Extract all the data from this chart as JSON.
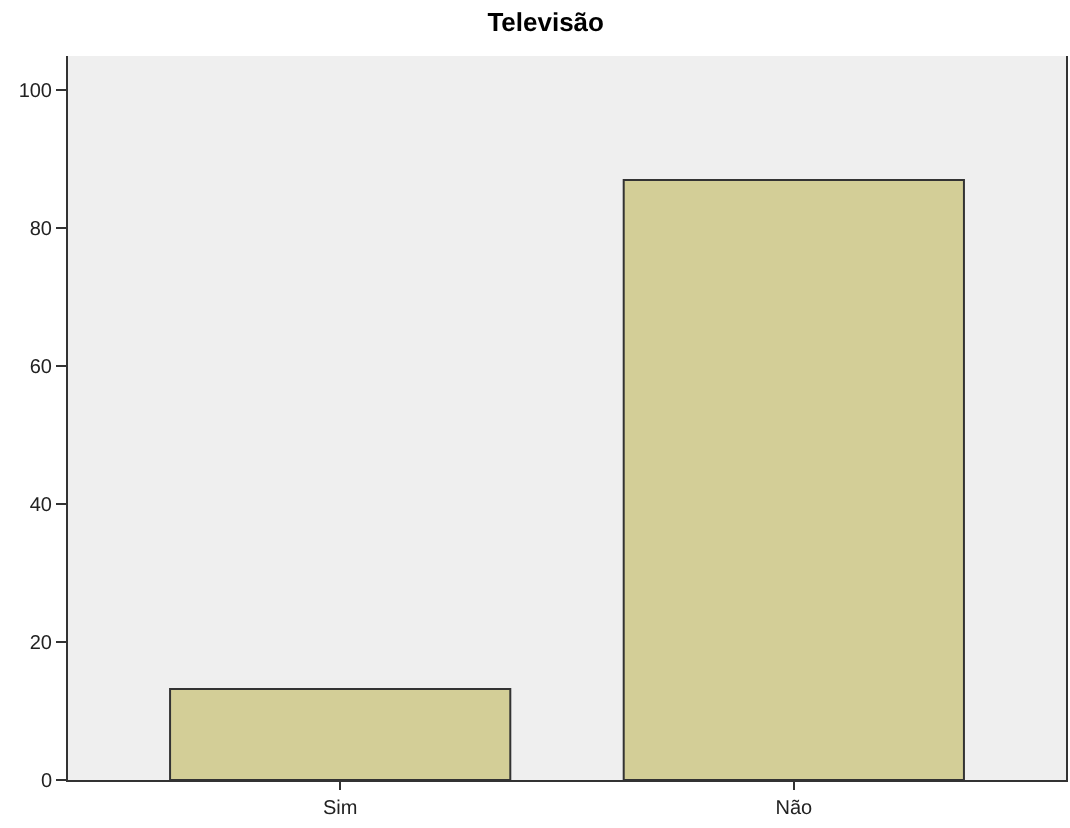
{
  "chart_data": {
    "type": "bar",
    "title": "Televisão",
    "categories": [
      "Sim",
      "Não"
    ],
    "values": [
      13.2,
      87
    ],
    "color": "#d3ce97",
    "ylim": [
      0,
      105
    ],
    "yticks": [
      0,
      20,
      40,
      60,
      80,
      100
    ],
    "grid": false,
    "legend": false
  }
}
